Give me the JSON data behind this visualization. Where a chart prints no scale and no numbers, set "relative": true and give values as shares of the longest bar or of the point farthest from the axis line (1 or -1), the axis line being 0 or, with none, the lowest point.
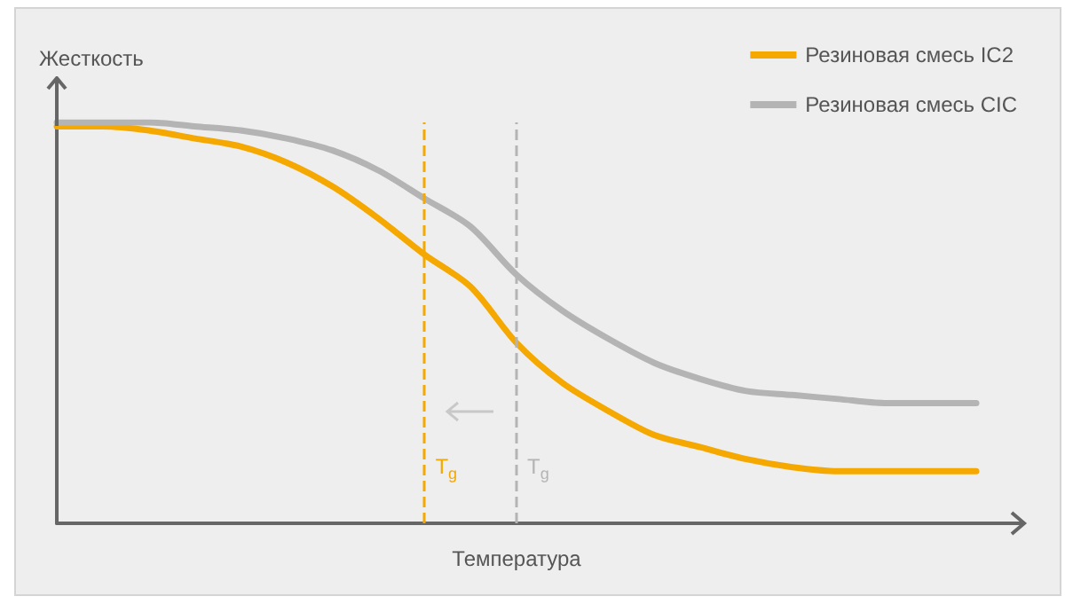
{
  "chart_data": {
    "type": "line",
    "relative": true,
    "xlabel": "Температура",
    "ylabel": "Жесткость",
    "legend": "top right",
    "grid": false,
    "marker": "none",
    "line_style": "solid",
    "categories": [
      null,
      null,
      null,
      null,
      null,
      null,
      null,
      null,
      null,
      null,
      null,
      null,
      null,
      null,
      null,
      null,
      null,
      null,
      null,
      null,
      null
    ],
    "series": [
      {
        "name": "Резиновая смесь IC2",
        "color": "#f5a800",
        "values": [
          0.99,
          0.99,
          0.98,
          0.96,
          0.94,
          0.9,
          0.84,
          0.76,
          0.67,
          0.59,
          0.45,
          0.35,
          0.28,
          0.22,
          0.19,
          0.16,
          0.14,
          0.13,
          0.13,
          0.13,
          0.13
        ]
      },
      {
        "name": "Резиновая смесь CIC",
        "color": "#b4b4b4",
        "values": [
          1,
          1,
          1,
          0.99,
          0.98,
          0.96,
          0.93,
          0.88,
          0.81,
          0.74,
          0.62,
          0.53,
          0.46,
          0.4,
          0.36,
          0.33,
          0.32,
          0.31,
          0.3,
          0.3,
          0.3
        ]
      }
    ],
    "annotations": [
      "T$_{g}$",
      "T$_{g}$"
    ]
  }
}
